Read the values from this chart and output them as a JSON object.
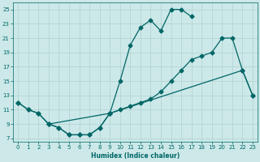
{
  "xlabel": "Humidex (Indice chaleur)",
  "bg_color": "#cce8e8",
  "line_color": "#006666",
  "marker": "D",
  "markersize": 2.5,
  "linewidth": 0.9,
  "xlim": [
    -0.5,
    23.5
  ],
  "ylim": [
    6.5,
    26
  ],
  "xticks": [
    0,
    1,
    2,
    3,
    4,
    5,
    6,
    7,
    8,
    9,
    10,
    11,
    12,
    13,
    14,
    15,
    16,
    17,
    18,
    19,
    20,
    21,
    22,
    23
  ],
  "yticks": [
    7,
    9,
    11,
    13,
    15,
    17,
    19,
    21,
    23,
    25
  ],
  "curve1_x": [
    0,
    1,
    2,
    3,
    4,
    5,
    6,
    7,
    8,
    9,
    10,
    11,
    12,
    13,
    14,
    15,
    16,
    17
  ],
  "curve1_y": [
    12,
    11,
    10.5,
    9,
    8.5,
    7.5,
    7.5,
    7.5,
    8.5,
    10.5,
    15,
    20,
    22.5,
    23.5,
    22,
    25,
    25,
    24
  ],
  "curve2_x": [
    0,
    1,
    2,
    3,
    9,
    10,
    11,
    12,
    13,
    14,
    15,
    16,
    17,
    18,
    19,
    20,
    21,
    22,
    23
  ],
  "curve2_y": [
    12,
    11,
    10.5,
    9,
    10.5,
    11,
    11.5,
    12,
    12.5,
    13.5,
    15,
    16.5,
    18,
    18.5,
    19,
    21,
    21,
    16.5,
    13
  ],
  "curve3_x": [
    3,
    4,
    5,
    6,
    7,
    8,
    9,
    22,
    23
  ],
  "curve3_y": [
    9,
    8.5,
    7.5,
    7.5,
    7.5,
    8.5,
    10.5,
    16.5,
    13
  ]
}
